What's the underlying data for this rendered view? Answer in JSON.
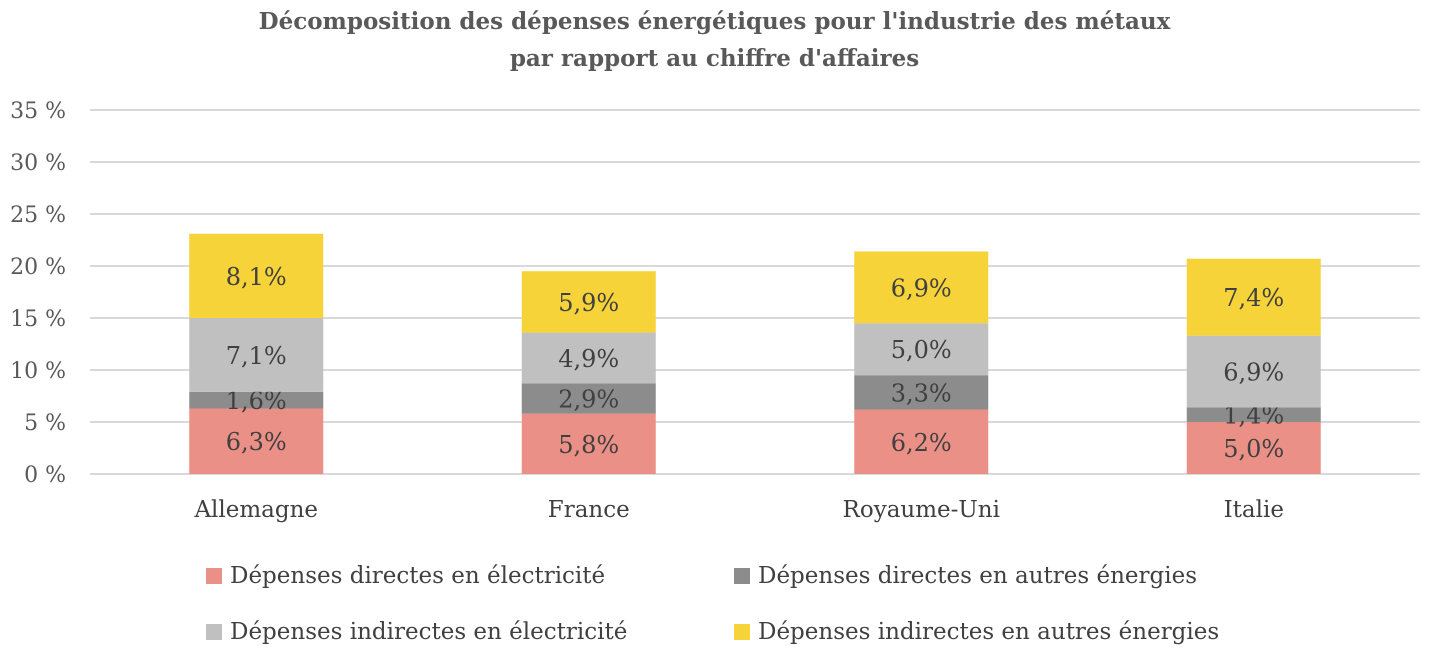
{
  "chart_data": {
    "type": "bar",
    "stacked": true,
    "title": "Décomposition des dépenses énergétiques pour l'industrie des métaux par rapport au chiffre d'affaires",
    "title_lines": [
      "Décomposition des dépenses énergétiques pour l'industrie des métaux",
      "par rapport au chiffre d'affaires"
    ],
    "categories": [
      "Allemagne",
      "France",
      "Royaume-Uni",
      "Italie"
    ],
    "series": [
      {
        "name": "Dépenses directes en électricité",
        "color": "#EB9087",
        "values": [
          6.3,
          5.8,
          6.2,
          5.0
        ],
        "labels": [
          "6,3%",
          "5,8%",
          "6,2%",
          "5,0%"
        ]
      },
      {
        "name": "Dépenses directes en autres énergies",
        "color": "#8C8C8C",
        "values": [
          1.6,
          2.9,
          3.3,
          1.4
        ],
        "labels": [
          "1,6%",
          "2,9%",
          "3,3%",
          "1,4%"
        ]
      },
      {
        "name": "Dépenses indirectes en électricité",
        "color": "#C0C0C0",
        "values": [
          7.1,
          4.9,
          5.0,
          6.9
        ],
        "labels": [
          "7,1%",
          "4,9%",
          "5,0%",
          "6,9%"
        ]
      },
      {
        "name": "Dépenses indirectes en autres énergies",
        "color": "#F7D33A",
        "values": [
          8.1,
          5.9,
          6.9,
          7.4
        ],
        "labels": [
          "8,1%",
          "5,9%",
          "6,9%",
          "7,4%"
        ]
      }
    ],
    "ylim": [
      0,
      35
    ],
    "yticks": [
      0,
      5,
      10,
      15,
      20,
      25,
      30,
      35
    ],
    "ytick_labels": [
      "0 %",
      "5 %",
      "10 %",
      "15 %",
      "20 %",
      "25 %",
      "30 %",
      "35 %"
    ],
    "xlabel": "",
    "ylabel": "",
    "grid": true,
    "legend_position": "bottom"
  }
}
